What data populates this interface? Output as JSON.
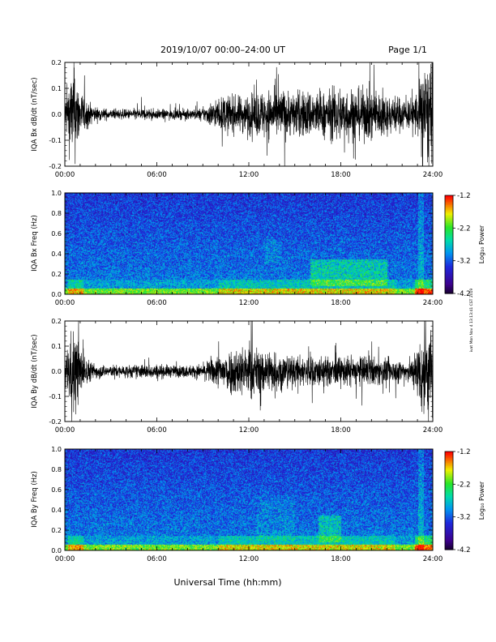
{
  "header": {
    "title": "2019/10/07  00:00–24:00 UT",
    "page": "Page 1/1"
  },
  "footer": {
    "xlabel": "Universal Time (hh:mm)",
    "side_stamp": "ivat Mon Nov 4 13:13:41 CST 2019"
  },
  "colorbar": {
    "label": "Log₁₀ Power",
    "ticks": [
      "-1.2",
      "-2.2",
      "-3.2",
      "-4.2"
    ],
    "range": [
      -4.2,
      -1.2
    ]
  },
  "x_ticks": [
    "00:00",
    "06:00",
    "12:00",
    "18:00",
    "24:00"
  ],
  "chart_data": [
    {
      "type": "line",
      "title": "",
      "ylabel": "IQA Bx dB/dt (nT/sec)",
      "xlabel": "",
      "xlim": [
        0,
        24
      ],
      "ylim": [
        -0.2,
        0.2
      ],
      "yticks": [
        "0.2",
        "0.1",
        "0.0",
        "-0.1",
        "-0.2"
      ],
      "envelope": {
        "hours": [
          0,
          0.3,
          0.6,
          1,
          1.5,
          2,
          3,
          4,
          5,
          6,
          7,
          8,
          9,
          9.5,
          10,
          10.5,
          11,
          12,
          13,
          14,
          15,
          16,
          17,
          18,
          19,
          20,
          21,
          22,
          22.5,
          23,
          23.3,
          23.6,
          24
        ],
        "amplitude": [
          0.06,
          0.15,
          0.2,
          0.1,
          0.05,
          0.03,
          0.02,
          0.02,
          0.025,
          0.02,
          0.02,
          0.02,
          0.025,
          0.05,
          0.06,
          0.08,
          0.07,
          0.08,
          0.1,
          0.1,
          0.09,
          0.1,
          0.09,
          0.12,
          0.1,
          0.11,
          0.08,
          0.07,
          0.06,
          0.1,
          0.2,
          0.2,
          0.2
        ]
      }
    },
    {
      "type": "heatmap",
      "title": "",
      "ylabel": "IQA Bx Freq (Hz)",
      "xlabel": "",
      "xlim": [
        0,
        24
      ],
      "ylim": [
        0.0,
        1.0
      ],
      "yticks": [
        "1.0",
        "0.8",
        "0.6",
        "0.4",
        "0.2",
        "0.0"
      ],
      "colorbar_label": "Log₁₀ Power",
      "zlim": [
        -4.2,
        -1.2
      ]
    },
    {
      "type": "line",
      "title": "",
      "ylabel": "IQA By dB/dt (nT/sec)",
      "xlabel": "",
      "xlim": [
        0,
        24
      ],
      "ylim": [
        -0.2,
        0.2
      ],
      "yticks": [
        "0.2",
        "0.1",
        "0.0",
        "-0.1",
        "-0.2"
      ],
      "envelope": {
        "hours": [
          0,
          0.3,
          0.6,
          1,
          1.5,
          2,
          3,
          4,
          5,
          6,
          7,
          8,
          9,
          9.5,
          10,
          10.5,
          11,
          12,
          13,
          14,
          15,
          16,
          17,
          18,
          19,
          20,
          21,
          22,
          22.5,
          23,
          23.3,
          23.6,
          24
        ],
        "amplitude": [
          0.05,
          0.14,
          0.2,
          0.1,
          0.05,
          0.03,
          0.025,
          0.025,
          0.03,
          0.03,
          0.025,
          0.025,
          0.03,
          0.05,
          0.07,
          0.09,
          0.1,
          0.11,
          0.09,
          0.08,
          0.06,
          0.07,
          0.06,
          0.06,
          0.06,
          0.06,
          0.05,
          0.05,
          0.05,
          0.1,
          0.2,
          0.2,
          0.2
        ]
      }
    },
    {
      "type": "heatmap",
      "title": "",
      "ylabel": "IQA By Freq (Hz)",
      "xlabel": "",
      "xlim": [
        0,
        24
      ],
      "ylim": [
        0.0,
        1.0
      ],
      "yticks": [
        "1.0",
        "0.8",
        "0.6",
        "0.4",
        "0.2",
        "0.0"
      ],
      "colorbar_label": "Log₁₀ Power",
      "zlim": [
        -4.2,
        -1.2
      ]
    }
  ]
}
